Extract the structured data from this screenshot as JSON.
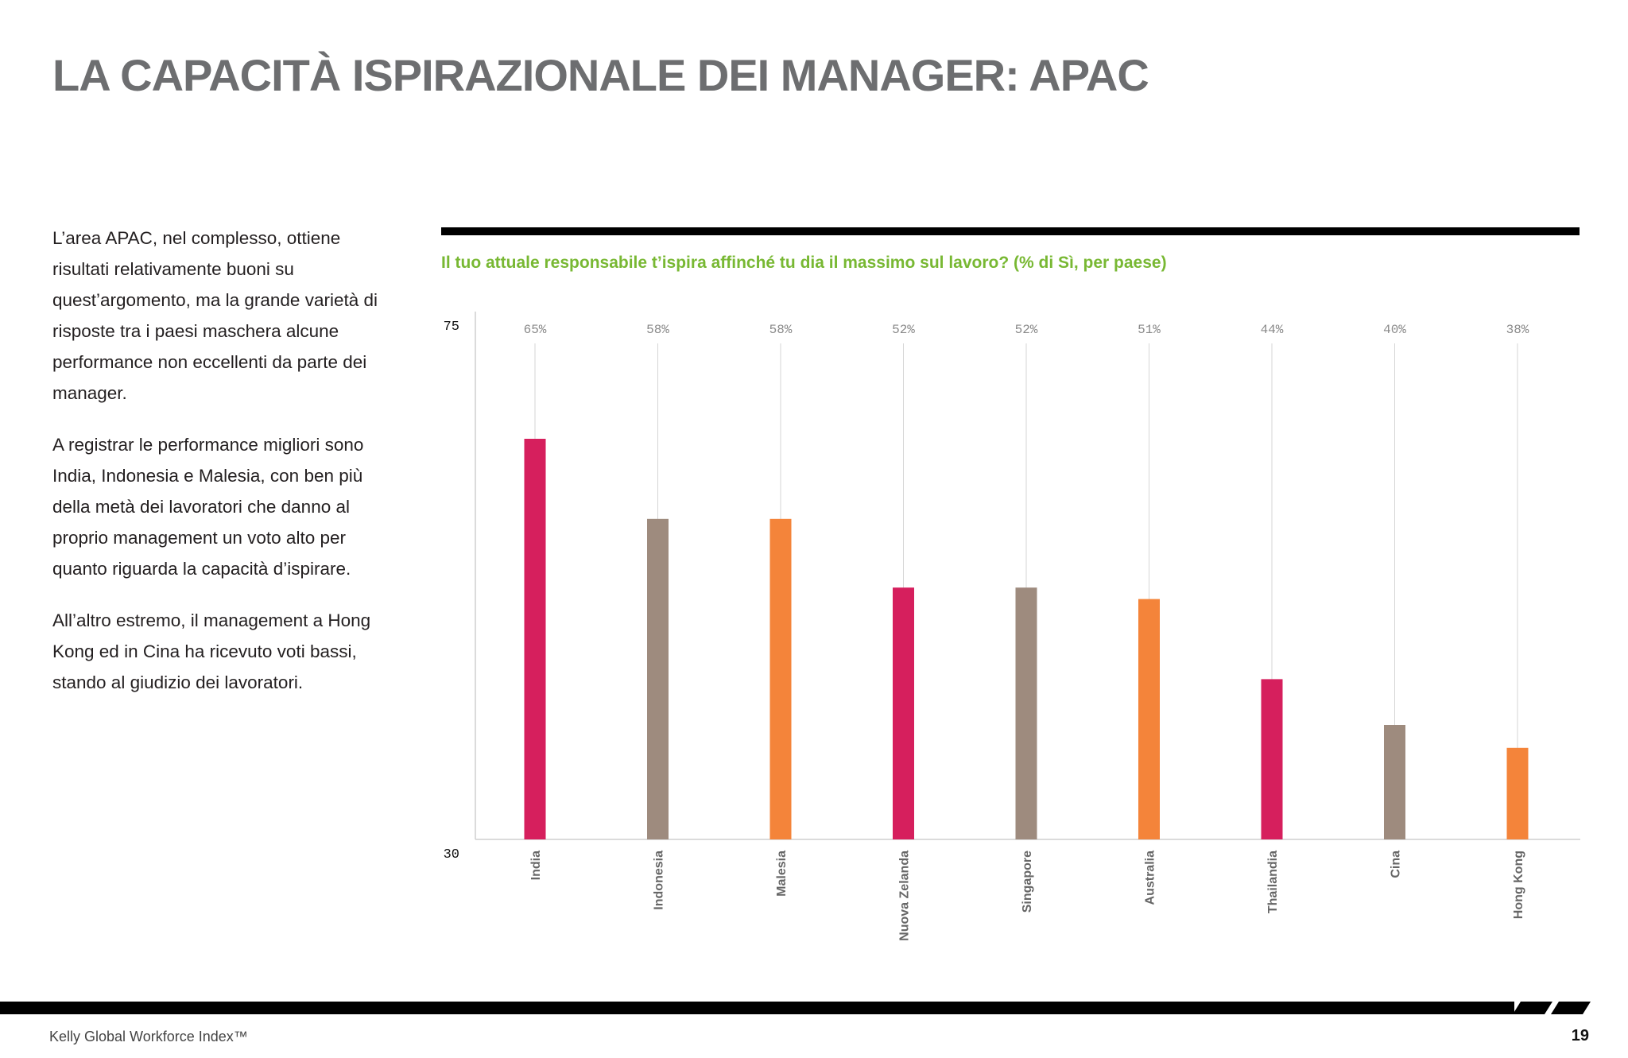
{
  "page": {
    "title": "LA CAPACITÀ ISPIRAZIONALE DEI MANAGER: APAC",
    "paragraphs": [
      "L’area APAC, nel complesso, ottiene risultati relativamente buoni su quest’argomento, ma la grande varietà di risposte tra i paesi maschera alcune performance non eccellenti da parte dei manager.",
      "A registrar le performance migliori sono India, Indonesia e Malesia, con ben più della metà dei lavoratori che danno al proprio management un voto alto per quanto riguarda la capacità d’ispirare.",
      "All’altro estremo, il management a Hong Kong ed in Cina ha ricevuto voti bassi, stando al giudizio dei lavoratori."
    ],
    "chart_question": "Il tuo attuale responsabile t’ispira affinché tu dia il massimo sul lavoro? (% di Sì, per paese)",
    "footer": {
      "left": "Kelly Global Workforce Index™",
      "page_number": "19"
    }
  },
  "chart_data": {
    "type": "bar",
    "categories": [
      "India",
      "Indonesia",
      "Malesia",
      "Nuova Zelanda",
      "Singapore",
      "Australia",
      "Thailandia",
      "Cina",
      "Hong Kong"
    ],
    "values": [
      65,
      58,
      58,
      52,
      52,
      51,
      44,
      40,
      38
    ],
    "data_labels": [
      "65%",
      "58%",
      "58%",
      "52%",
      "52%",
      "51%",
      "44%",
      "40%",
      "38%"
    ],
    "ylim": [
      30,
      75
    ],
    "y_ticks": [
      "30",
      "75"
    ],
    "colors": [
      "#d61f5d",
      "#9e8b7e",
      "#f4843a",
      "#d61f5d",
      "#9e8b7e",
      "#f4843a",
      "#d61f5d",
      "#9e8b7e",
      "#f4843a"
    ],
    "grid": false,
    "legend": "none"
  }
}
